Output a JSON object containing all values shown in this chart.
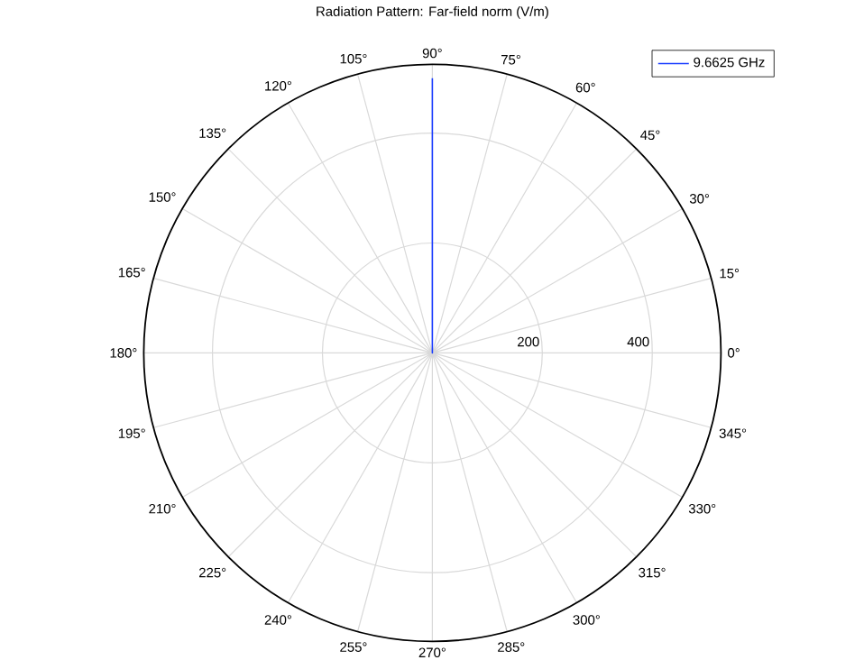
{
  "chart_data": {
    "type": "radar",
    "title": "Radiation Pattern: Far-field norm (V/m)",
    "categories": [
      "90°",
      "75°",
      "60°",
      "45°",
      "30°",
      "15°",
      "0°",
      "345°",
      "330°",
      "315°",
      "300°",
      "285°",
      "270°",
      "255°",
      "240°",
      "225°",
      "210°",
      "195°",
      "180°",
      "165°",
      "150°",
      "135°",
      "120°",
      "105°"
    ],
    "series": [
      {
        "name": "9.6625 GHz",
        "color": "#1a3cff",
        "values": [
          500,
          0,
          0,
          0,
          0,
          0,
          0,
          0,
          0,
          0,
          0,
          0,
          0,
          0,
          0,
          0,
          0,
          0,
          0,
          0,
          0,
          0,
          0,
          0
        ]
      }
    ],
    "ylim": [
      0,
      525
    ],
    "yticks": [
      200,
      400
    ],
    "grid": true,
    "legend": "top right"
  }
}
